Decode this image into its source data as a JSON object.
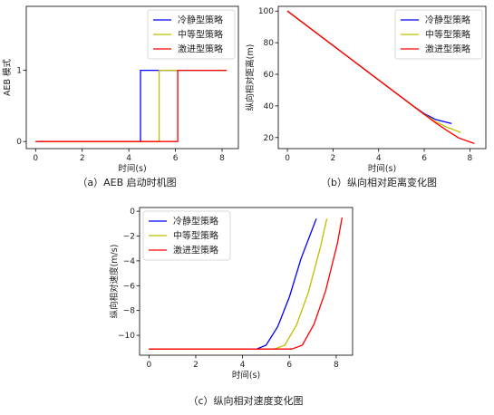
{
  "chart_data": [
    {
      "type": "line",
      "caption": "（a）AEB 启动时机图",
      "xlabel": "时间(s)",
      "ylabel": "AEB 模式",
      "xlim": [
        -0.4,
        8.7
      ],
      "ylim": [
        -0.1,
        1.9
      ],
      "xticks": [
        0,
        2,
        4,
        6,
        8
      ],
      "yticks": [
        0,
        1
      ],
      "legend": "top-right",
      "series": [
        {
          "name": "冷静型策略",
          "color": "#0000ff",
          "x": [
            0,
            4.5,
            4.5,
            8.2
          ],
          "y": [
            0,
            0,
            1,
            1
          ]
        },
        {
          "name": "中等型策略",
          "color": "#bfbf00",
          "x": [
            0,
            5.3,
            5.3,
            8.2
          ],
          "y": [
            0,
            0,
            1,
            1
          ]
        },
        {
          "name": "激进型策略",
          "color": "#ff0000",
          "x": [
            0,
            6.1,
            6.1,
            8.2
          ],
          "y": [
            0,
            0,
            1,
            1
          ]
        }
      ]
    },
    {
      "type": "line",
      "caption": "（b）纵向相对距离变化图",
      "xlabel": "时间(s)",
      "ylabel": "纵向相对距离(m)",
      "xlim": [
        -0.4,
        8.7
      ],
      "ylim": [
        13,
        103
      ],
      "xticks": [
        0,
        2,
        4,
        6,
        8
      ],
      "yticks": [
        20,
        40,
        60,
        80,
        100
      ],
      "legend": "top-right",
      "series": [
        {
          "name": "冷静型策略",
          "color": "#0000ff",
          "x": [
            0,
            1,
            2,
            3,
            4,
            5,
            5.5,
            6,
            6.5,
            7.2
          ],
          "y": [
            100,
            89.1,
            78.2,
            67.3,
            56.4,
            45.5,
            40.1,
            35.1,
            31.4,
            28.8
          ]
        },
        {
          "name": "中等型策略",
          "color": "#bfbf00",
          "x": [
            0,
            5.5,
            6,
            6.5,
            7,
            7.6
          ],
          "y": [
            100,
            40.1,
            34.7,
            30.1,
            26.5,
            23.2
          ]
        },
        {
          "name": "激进型策略",
          "color": "#ff0000",
          "x": [
            0,
            6,
            6.5,
            7,
            7.5,
            8.2
          ],
          "y": [
            100,
            34.6,
            29.3,
            24.4,
            19.8,
            16.2
          ]
        }
      ]
    },
    {
      "type": "line",
      "caption": "（c）纵向相对速度变化图",
      "xlabel": "时间(s)",
      "ylabel": "纵向相对速度(m/s)",
      "xlim": [
        -0.4,
        8.7
      ],
      "ylim": [
        -11.6,
        0.3
      ],
      "xticks": [
        0,
        2,
        4,
        6,
        8
      ],
      "yticks": [
        -10,
        -8,
        -6,
        -4,
        -2,
        0
      ],
      "legend": "top-left",
      "series": [
        {
          "name": "冷静型策略",
          "color": "#0000ff",
          "x": [
            0,
            4.6,
            5.0,
            5.5,
            6.0,
            6.5,
            7.15
          ],
          "y": [
            -11.1,
            -11.1,
            -10.8,
            -9.3,
            -6.9,
            -3.8,
            -0.6
          ]
        },
        {
          "name": "中等型策略",
          "color": "#bfbf00",
          "x": [
            0,
            5.35,
            5.8,
            6.3,
            6.8,
            7.3,
            7.6
          ],
          "y": [
            -11.1,
            -11.1,
            -10.8,
            -9.2,
            -6.6,
            -3.1,
            -0.6
          ]
        },
        {
          "name": "激进型策略",
          "color": "#ff0000",
          "x": [
            0,
            6.1,
            6.55,
            7.05,
            7.55,
            8.05,
            8.25
          ],
          "y": [
            -11.1,
            -11.1,
            -10.8,
            -9.1,
            -6.4,
            -2.6,
            -0.5
          ]
        }
      ]
    }
  ]
}
